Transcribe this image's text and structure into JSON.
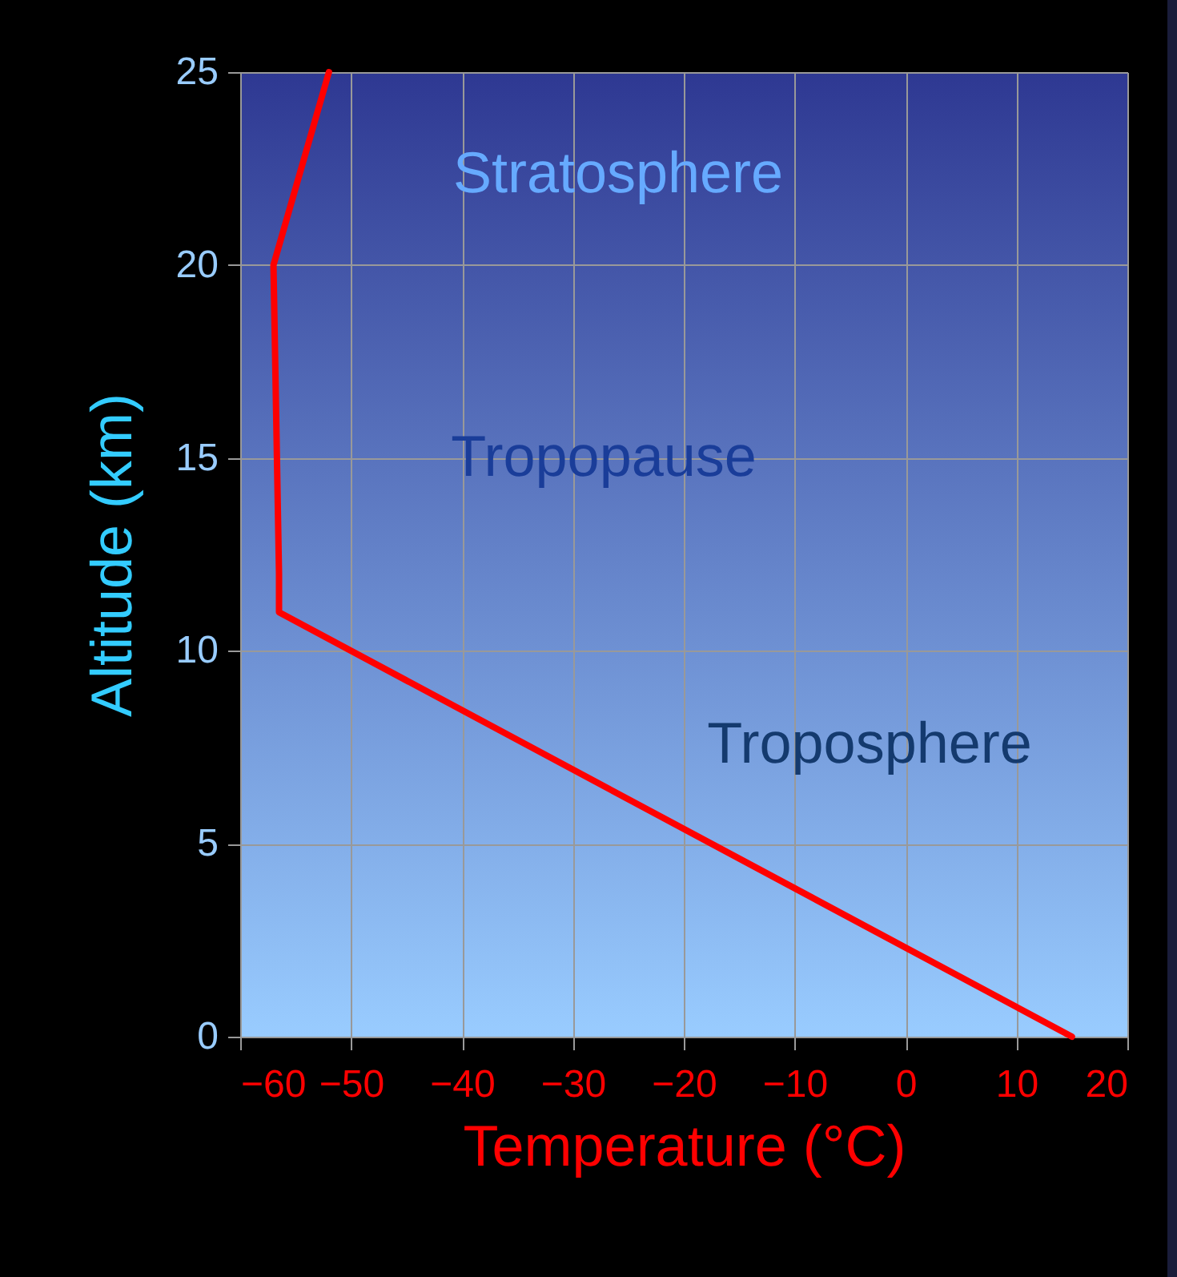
{
  "chart_data": {
    "type": "line",
    "xlabel": "Temperature (°C)",
    "ylabel": "Altitude (km)",
    "x": [
      15,
      -56.5,
      -56.5,
      -57,
      -52
    ],
    "series": [
      {
        "color": "#ff0000",
        "values": [
          0,
          11,
          12,
          20,
          25
        ]
      }
    ],
    "xlim": [
      -60,
      20
    ],
    "xticks": [
      -60,
      -50,
      -40,
      -30,
      -20,
      -10,
      0,
      10,
      20
    ],
    "ylim": [
      0,
      25
    ],
    "yticks": [
      0,
      5,
      10,
      15,
      20,
      25
    ],
    "grid": true,
    "marker": "none",
    "line_style": "solid",
    "annotations": [
      "Stratosphere",
      "Tropopause",
      "Troposphere"
    ]
  }
}
